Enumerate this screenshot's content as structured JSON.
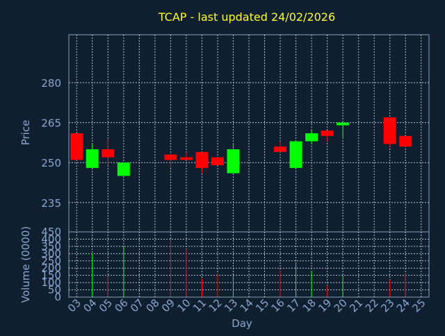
{
  "colors": {
    "background": "#0f1f2f",
    "axis": "#8aa0c0",
    "grid": "#b8c4d4",
    "title": "#ffff33",
    "up": "#00ff00",
    "down": "#ff0000",
    "text": "#8aa8d0"
  },
  "chart_data": {
    "type": "candlestick",
    "title": "TCAP - last updated 24/02/2026",
    "xlabel": "Day",
    "ylabel": "Price",
    "volume_ylabel": "Volume (0000)",
    "ylim": [
      224,
      298
    ],
    "volume_ylim": [
      0,
      450
    ],
    "yticks": [
      235,
      250,
      265,
      280
    ],
    "volume_yticks": [
      0,
      50,
      100,
      150,
      200,
      250,
      300,
      350,
      400,
      450
    ],
    "grid": true,
    "x": [
      "03",
      "04",
      "05",
      "06",
      "07",
      "08",
      "09",
      "10",
      "11",
      "12",
      "13",
      "14",
      "15",
      "16",
      "17",
      "18",
      "19",
      "20",
      "21",
      "22",
      "23",
      "24",
      "25"
    ],
    "candles": [
      {
        "day": "03",
        "open": 261,
        "high": 261,
        "low": 251,
        "close": 251,
        "volume": 0
      },
      {
        "day": "04",
        "open": 248,
        "high": 257,
        "low": 248,
        "close": 255,
        "volume": 300
      },
      {
        "day": "05",
        "open": 255,
        "high": 259,
        "low": 249,
        "close": 252,
        "volume": 140
      },
      {
        "day": "06",
        "open": 245,
        "high": 250,
        "low": 245,
        "close": 250,
        "volume": 350
      },
      {
        "day": "09",
        "open": 253,
        "high": 253,
        "low": 248,
        "close": 251,
        "volume": 400
      },
      {
        "day": "10",
        "open": 252,
        "high": 254,
        "low": 251,
        "close": 251,
        "volume": 330
      },
      {
        "day": "11",
        "open": 254,
        "high": 254,
        "low": 246,
        "close": 248,
        "volume": 130
      },
      {
        "day": "12",
        "open": 252,
        "high": 252,
        "low": 249,
        "close": 249,
        "volume": 160
      },
      {
        "day": "13",
        "open": 246,
        "high": 257,
        "low": 246,
        "close": 255,
        "volume": 150
      },
      {
        "day": "16",
        "open": 256,
        "high": 258,
        "low": 254,
        "close": 254,
        "volume": 180
      },
      {
        "day": "17",
        "open": 248,
        "high": 258,
        "low": 248,
        "close": 258,
        "volume": 240
      },
      {
        "day": "18",
        "open": 258,
        "high": 262,
        "low": 257,
        "close": 261,
        "volume": 180
      },
      {
        "day": "19",
        "open": 262,
        "high": 262,
        "low": 258,
        "close": 260,
        "volume": 80
      },
      {
        "day": "20",
        "open": 264,
        "high": 265,
        "low": 259,
        "close": 265,
        "volume": 150
      },
      {
        "day": "23",
        "open": 267,
        "high": 267,
        "low": 256,
        "close": 257,
        "volume": 120
      },
      {
        "day": "24",
        "open": 260,
        "high": 260,
        "low": 256,
        "close": 256,
        "volume": 160
      }
    ]
  }
}
